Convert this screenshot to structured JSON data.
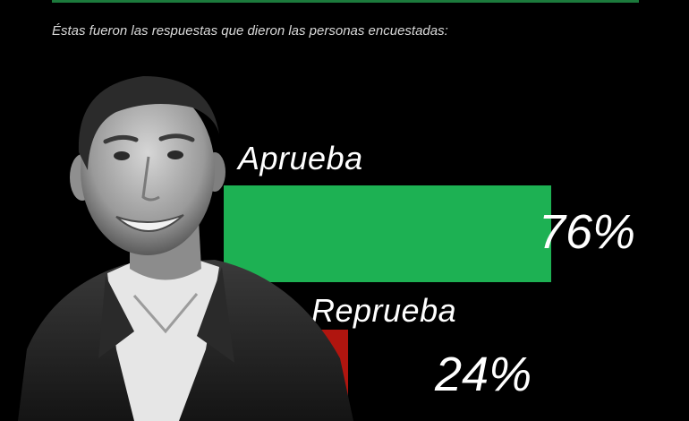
{
  "intro_text": "Éstas fueron las respuestas que dieron las personas encuestadas:",
  "colors": {
    "background": "#000000",
    "approve": "#1db153",
    "disapprove": "#b0150f",
    "accent_rule": "#1c7a3c"
  },
  "photo": {
    "icon": "man-portrait-icon"
  },
  "chart_data": {
    "type": "bar",
    "orientation": "horizontal",
    "categories": [
      "Aprueba",
      "Reprueba"
    ],
    "values": [
      76,
      24
    ],
    "value_labels": [
      "76%",
      "24%"
    ],
    "colors": [
      "#1db153",
      "#b0150f"
    ],
    "xlim": [
      0,
      100
    ],
    "grid": false,
    "legend": "none"
  }
}
